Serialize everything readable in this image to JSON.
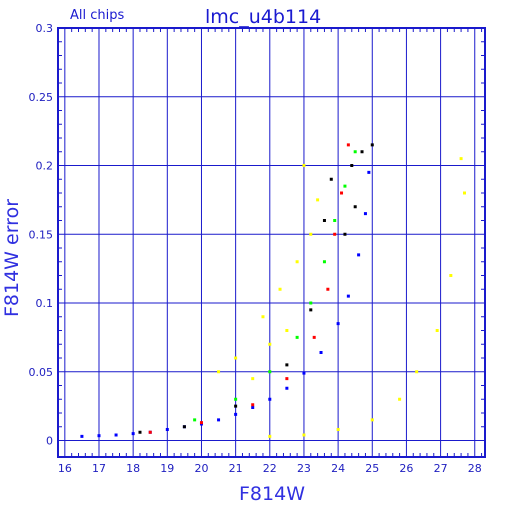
{
  "chart_data": {
    "type": "scatter",
    "title": "lmc_u4b114",
    "subtitle": "All chips",
    "xlabel": "F814W",
    "ylabel": "F814W error",
    "xlim": [
      15.8,
      28.3
    ],
    "ylim": [
      -0.012,
      0.3
    ],
    "x_ticks": [
      "16",
      "17",
      "18",
      "19",
      "20",
      "21",
      "22",
      "23",
      "24",
      "25",
      "26",
      "27",
      "28"
    ],
    "y_ticks": [
      "0",
      "0.05",
      "0.1",
      "0.15",
      "0.2",
      "0.25",
      "0.3"
    ],
    "grid": true,
    "colors": {
      "grid": "#1a1acc",
      "text": "#1a1ad0",
      "blue": "#0000ff",
      "yellow": "#ffff00",
      "green": "#00ff00",
      "red": "#ff0000",
      "black": "#000000"
    },
    "series": [
      {
        "color": "#0000ff",
        "points": [
          [
            16.5,
            0.003
          ],
          [
            17.0,
            0.0035
          ],
          [
            17.5,
            0.004
          ],
          [
            18.0,
            0.005
          ],
          [
            18.5,
            0.006
          ],
          [
            19.0,
            0.008
          ],
          [
            19.5,
            0.01
          ],
          [
            20.0,
            0.012
          ],
          [
            20.5,
            0.015
          ],
          [
            21.0,
            0.019
          ],
          [
            21.5,
            0.024
          ],
          [
            22.0,
            0.03
          ],
          [
            22.5,
            0.038
          ],
          [
            23.0,
            0.049
          ],
          [
            23.5,
            0.064
          ],
          [
            24.0,
            0.085
          ],
          [
            24.3,
            0.105
          ],
          [
            24.6,
            0.135
          ],
          [
            24.8,
            0.165
          ],
          [
            24.9,
            0.195
          ]
        ]
      },
      {
        "color": "#ffff00",
        "points": [
          [
            20.5,
            0.05
          ],
          [
            21.0,
            0.06
          ],
          [
            21.5,
            0.045
          ],
          [
            22.0,
            0.07
          ],
          [
            22.5,
            0.08
          ],
          [
            21.8,
            0.09
          ],
          [
            22.3,
            0.11
          ],
          [
            22.8,
            0.13
          ],
          [
            23.2,
            0.15
          ],
          [
            23.4,
            0.175
          ],
          [
            23.0,
            0.2
          ],
          [
            22.0,
            0.003
          ],
          [
            23.0,
            0.004
          ],
          [
            24.0,
            0.008
          ],
          [
            25.0,
            0.015
          ],
          [
            25.8,
            0.03
          ],
          [
            26.3,
            0.05
          ],
          [
            26.9,
            0.08
          ],
          [
            27.3,
            0.12
          ],
          [
            27.7,
            0.18
          ],
          [
            27.6,
            0.205
          ]
        ]
      },
      {
        "color": "#00ff00",
        "points": [
          [
            19.8,
            0.015
          ],
          [
            21.0,
            0.03
          ],
          [
            22.0,
            0.05
          ],
          [
            22.8,
            0.075
          ],
          [
            23.2,
            0.1
          ],
          [
            23.6,
            0.13
          ],
          [
            23.9,
            0.16
          ],
          [
            24.2,
            0.185
          ],
          [
            24.5,
            0.21
          ]
        ]
      },
      {
        "color": "#ff0000",
        "points": [
          [
            18.5,
            0.006
          ],
          [
            20.0,
            0.013
          ],
          [
            21.5,
            0.026
          ],
          [
            22.5,
            0.045
          ],
          [
            23.3,
            0.075
          ],
          [
            23.7,
            0.11
          ],
          [
            23.9,
            0.15
          ],
          [
            24.1,
            0.18
          ],
          [
            24.3,
            0.215
          ]
        ]
      },
      {
        "color": "#000000",
        "points": [
          [
            18.2,
            0.006
          ],
          [
            19.5,
            0.01
          ],
          [
            21.0,
            0.025
          ],
          [
            22.5,
            0.055
          ],
          [
            23.2,
            0.095
          ],
          [
            23.6,
            0.16
          ],
          [
            23.8,
            0.19
          ],
          [
            24.4,
            0.2
          ],
          [
            24.7,
            0.21
          ],
          [
            25.0,
            0.215
          ],
          [
            24.2,
            0.15
          ],
          [
            24.5,
            0.17
          ]
        ]
      }
    ]
  }
}
